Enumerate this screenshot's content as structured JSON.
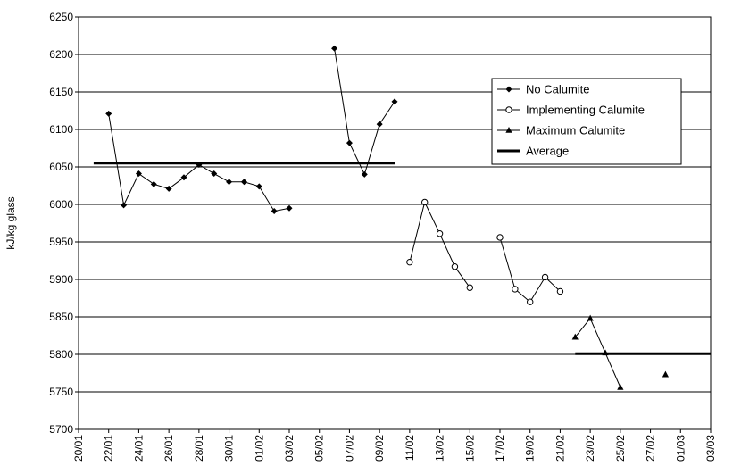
{
  "chart_data": {
    "type": "line",
    "title": "",
    "xlabel": "",
    "ylabel": "kJ/kg glass",
    "ylim": [
      5700,
      6250
    ],
    "yticks": [
      5700,
      5750,
      5800,
      5850,
      5900,
      5950,
      6000,
      6050,
      6100,
      6150,
      6200,
      6250
    ],
    "grid": "horizontal",
    "legend_position": "top-right",
    "x_tick_labels": [
      "20/01",
      "22/01",
      "24/01",
      "26/01",
      "28/01",
      "30/01",
      "01/02",
      "03/02",
      "05/02",
      "07/02",
      "09/02",
      "11/02",
      "13/02",
      "15/02",
      "17/02",
      "19/02",
      "21/02",
      "23/02",
      "25/02",
      "27/02",
      "01/03",
      "03/03"
    ],
    "series": [
      {
        "name": "No Calumite",
        "marker": "diamond",
        "color": "#000000",
        "segments": [
          [
            [
              "22/01",
              6121
            ],
            [
              "23/01",
              5999
            ],
            [
              "24/01",
              6041
            ],
            [
              "25/01",
              6027
            ],
            [
              "26/01",
              6021
            ],
            [
              "27/01",
              6036
            ],
            [
              "28/01",
              6053
            ],
            [
              "29/01",
              6041
            ],
            [
              "30/01",
              6030
            ],
            [
              "31/01",
              6030
            ],
            [
              "01/02",
              6024
            ],
            [
              "02/02",
              5991
            ],
            [
              "03/02",
              5995
            ]
          ],
          [
            [
              "06/02",
              6208
            ],
            [
              "07/02",
              6082
            ],
            [
              "08/02",
              6040
            ],
            [
              "09/02",
              6107
            ],
            [
              "10/02",
              6137
            ]
          ]
        ]
      },
      {
        "name": "Implementing Calumite",
        "marker": "open-circle",
        "color": "#000000",
        "segments": [
          [
            [
              "11/02",
              5923
            ],
            [
              "12/02",
              6003
            ],
            [
              "13/02",
              5961
            ],
            [
              "14/02",
              5917
            ],
            [
              "15/02",
              5889
            ]
          ],
          [
            [
              "17/02",
              5956
            ],
            [
              "18/02",
              5887
            ],
            [
              "19/02",
              5870
            ],
            [
              "20/02",
              5903
            ],
            [
              "21/02",
              5884
            ]
          ]
        ]
      },
      {
        "name": "Maximum Calumite",
        "marker": "triangle",
        "color": "#000000",
        "segments": [
          [
            [
              "22/02",
              5823
            ],
            [
              "23/02",
              5848
            ],
            [
              "24/02",
              5802
            ],
            [
              "25/02",
              5756
            ]
          ],
          [
            [
              "28/02",
              5773
            ]
          ]
        ]
      },
      {
        "name": "Average",
        "marker": "none",
        "color": "#000000",
        "line_width": 3,
        "segments": [
          [
            [
              "21/01",
              6055
            ],
            [
              "10/02",
              6055
            ]
          ],
          [
            [
              "22/02",
              5801
            ],
            [
              "03/03",
              5801
            ]
          ]
        ]
      }
    ]
  }
}
